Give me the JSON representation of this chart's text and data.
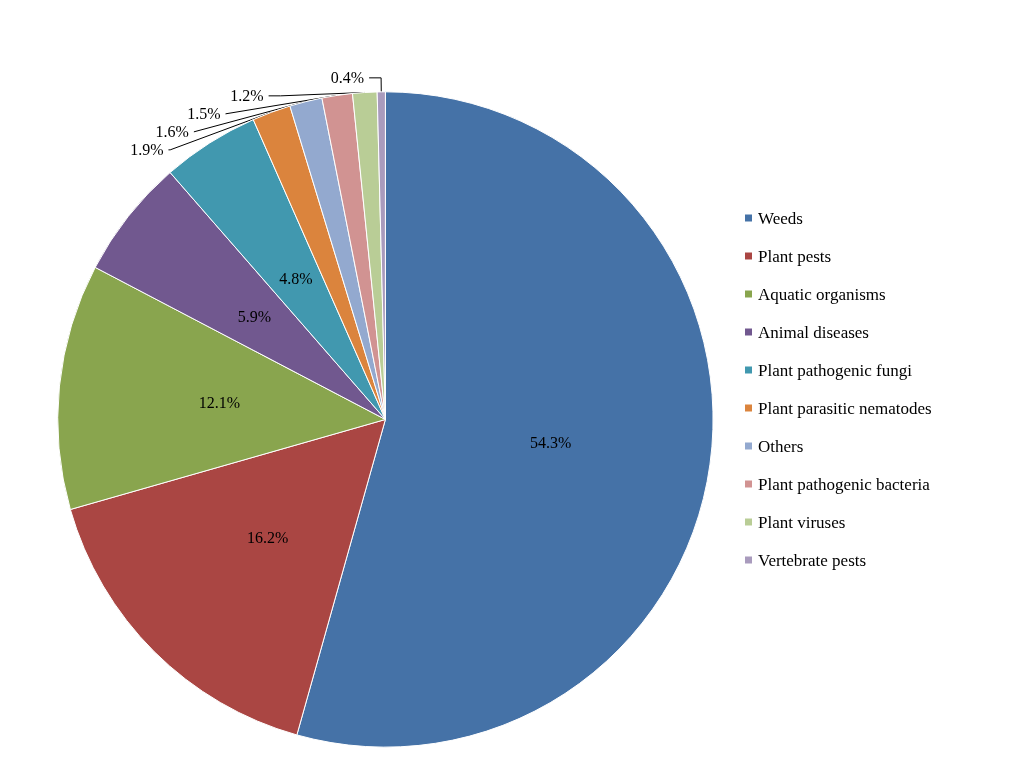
{
  "chart_data": {
    "type": "pie",
    "categories": [
      "Weeds",
      "Plant pests",
      "Aquatic organisms",
      "Animal diseases",
      "Plant pathogenic fungi",
      "Plant parasitic nematodes",
      "Others",
      "Plant pathogenic bacteria",
      "Plant viruses",
      "Vertebrate pests"
    ],
    "values": [
      54.3,
      16.2,
      12.1,
      5.9,
      4.8,
      1.9,
      1.6,
      1.5,
      1.2,
      0.4
    ],
    "colors": [
      "#4572a7",
      "#aa4643",
      "#89a54e",
      "#71588f",
      "#4198af",
      "#db843d",
      "#93a9cf",
      "#d19392",
      "#b9cd96",
      "#a99bbd"
    ],
    "value_labels": [
      "54.3%",
      "16.2%",
      "12.1%",
      "5.9%",
      "4.8%",
      "1.9%",
      "1.6%",
      "1.5%",
      "1.2%",
      "0.4%"
    ],
    "legend": "right"
  }
}
